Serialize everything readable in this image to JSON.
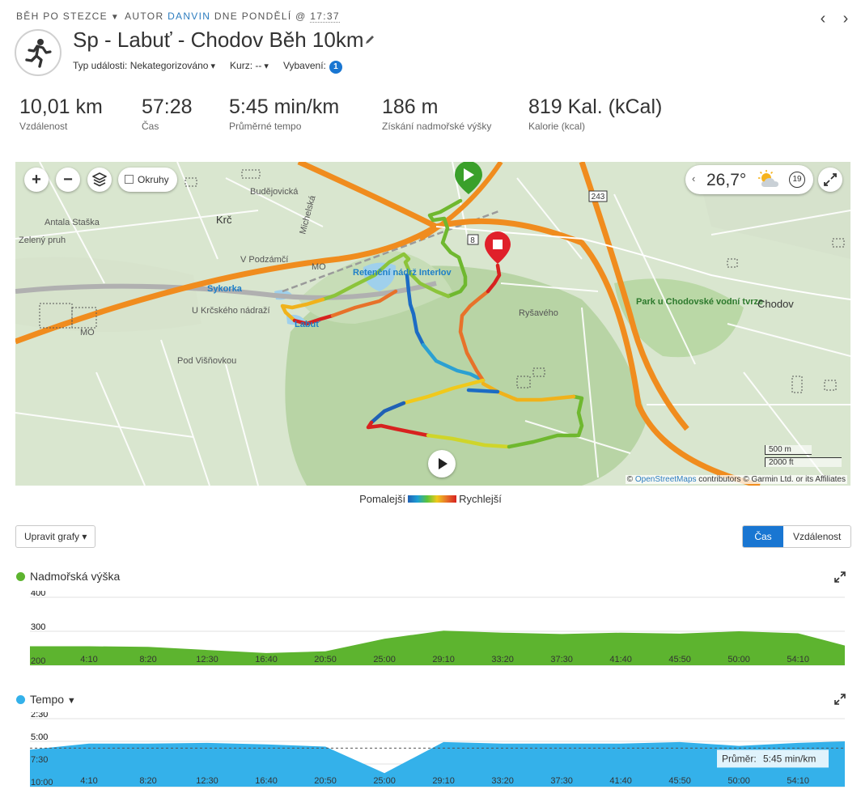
{
  "breadcrumb": {
    "activity_type": "BĚH PO STEZCE",
    "author_prefix": "AUTOR",
    "author": "DANVIN",
    "date_prefix": "DNE PONDĚLÍ @",
    "time": "17:37"
  },
  "nav": {
    "prev_icon": "chevron-left-icon",
    "next_icon": "chevron-right-icon"
  },
  "activity": {
    "title": "Sp - Labuť - Chodov Běh 10km",
    "avatar_icon": "runner-icon",
    "event_type": "Typ události: Nekategorizováno",
    "course": "Kurz: --",
    "gear_label": "Vybavení:",
    "gear_count": "1"
  },
  "stats": [
    {
      "value": "10,01 km",
      "label": "Vzdálenost"
    },
    {
      "value": "57:28",
      "label": "Čas"
    },
    {
      "value": "5:45 min/km",
      "label": "Průměrné tempo"
    },
    {
      "value": "186 m",
      "label": "Získání nadmořské výšky"
    },
    {
      "value": "819 Kal. (kCal)",
      "label": "Kalorie (kcal)"
    }
  ],
  "map": {
    "zoom_in": "+",
    "zoom_out": "−",
    "laps_label": "Okruhy",
    "temperature": "26,7°",
    "weather_icon": "partly-cloudy-icon",
    "wind_speed": "19",
    "labels": {
      "krc": "Krč",
      "sykorka": "Sykorka",
      "reservoir": "Retenční nádrž Interlov",
      "park": "Park u Chodovské vodní tvrze",
      "chodov": "Chodov",
      "labut": "Labuť",
      "pod_visnovkou": "Pod Višňovkou",
      "michelska": "Michelská",
      "v_podzami": "V Podzámčí",
      "antala_stasku": "Antala Staška",
      "budejovicka": "Budějovická",
      "u_krcskeho": "U Krčského nádraží",
      "ryzova": "Ryšavého",
      "zeleny_pruh": "Zelený pruh",
      "road_243": "243",
      "road_8": "8",
      "mo1": "MO",
      "mo2": "MO"
    },
    "scale_metric": "500 m",
    "scale_imperial": "2000 ft",
    "attribution_link": "OpenStreetMaps",
    "attribution_rest": " contributors © Garmin Ltd. or its Affiliates",
    "colors": {
      "route_fast": "#d7221f",
      "route_slow": "#2061b5",
      "motorway": "#f08c1e",
      "start": "#3aa02a",
      "finish": "#e0202a"
    }
  },
  "speed_legend": {
    "slower": "Pomalejší",
    "faster": "Rychlejší"
  },
  "controls": {
    "edit_charts": "Upravit grafy",
    "time_tab": "Čas",
    "distance_tab": "Vzdálenost"
  },
  "elevation_chart": {
    "title": "Nadmořská výška",
    "color": "#5db42f",
    "y_ticks": [
      "400",
      "300",
      "200"
    ],
    "x_ticks": [
      "4:10",
      "8:20",
      "12:30",
      "16:40",
      "20:50",
      "25:00",
      "29:10",
      "33:20",
      "37:30",
      "41:40",
      "45:50",
      "50:00",
      "54:10"
    ]
  },
  "pace_chart": {
    "title": "Tempo",
    "color": "#34b1ea",
    "y_ticks": [
      "2:30",
      "5:00",
      "7:30",
      "10:00"
    ],
    "x_ticks": [
      "4:10",
      "8:20",
      "12:30",
      "16:40",
      "20:50",
      "25:00",
      "29:10",
      "33:20",
      "37:30",
      "41:40",
      "45:50",
      "50:00",
      "54:10"
    ],
    "average_label": "Průměr:",
    "average_value": "5:45 min/km"
  },
  "chart_data": [
    {
      "type": "area",
      "title": "Nadmořská výška",
      "ylabel": "",
      "xlabel": "",
      "ylim": [
        200,
        400
      ],
      "x": [
        "0:00",
        "4:10",
        "8:20",
        "12:30",
        "16:40",
        "20:50",
        "25:00",
        "29:10",
        "33:20",
        "37:30",
        "41:40",
        "45:50",
        "50:00",
        "54:10",
        "57:28"
      ],
      "series": [
        {
          "values": [
            256,
            256,
            254,
            245,
            236,
            241,
            278,
            302,
            296,
            292,
            296,
            293,
            300,
            294,
            258
          ]
        }
      ],
      "grid": true
    },
    {
      "type": "area",
      "title": "Tempo",
      "ylabel": "",
      "xlabel": "",
      "ylim": [
        "2:30",
        "10:00"
      ],
      "x": [
        "0:00",
        "4:10",
        "8:20",
        "12:30",
        "16:40",
        "20:50",
        "25:00",
        "29:10",
        "33:20",
        "37:30",
        "41:40",
        "45:50",
        "50:00",
        "54:10",
        "57:28"
      ],
      "series": [
        {
          "values": [
            "5:55",
            "5:15",
            "5:15",
            "5:10",
            "5:20",
            "5:35",
            "8:30",
            "5:05",
            "5:15",
            "5:15",
            "5:15",
            "5:05",
            "5:30",
            "5:10",
            "5:00"
          ]
        }
      ],
      "average": "5:45",
      "grid": true
    }
  ]
}
